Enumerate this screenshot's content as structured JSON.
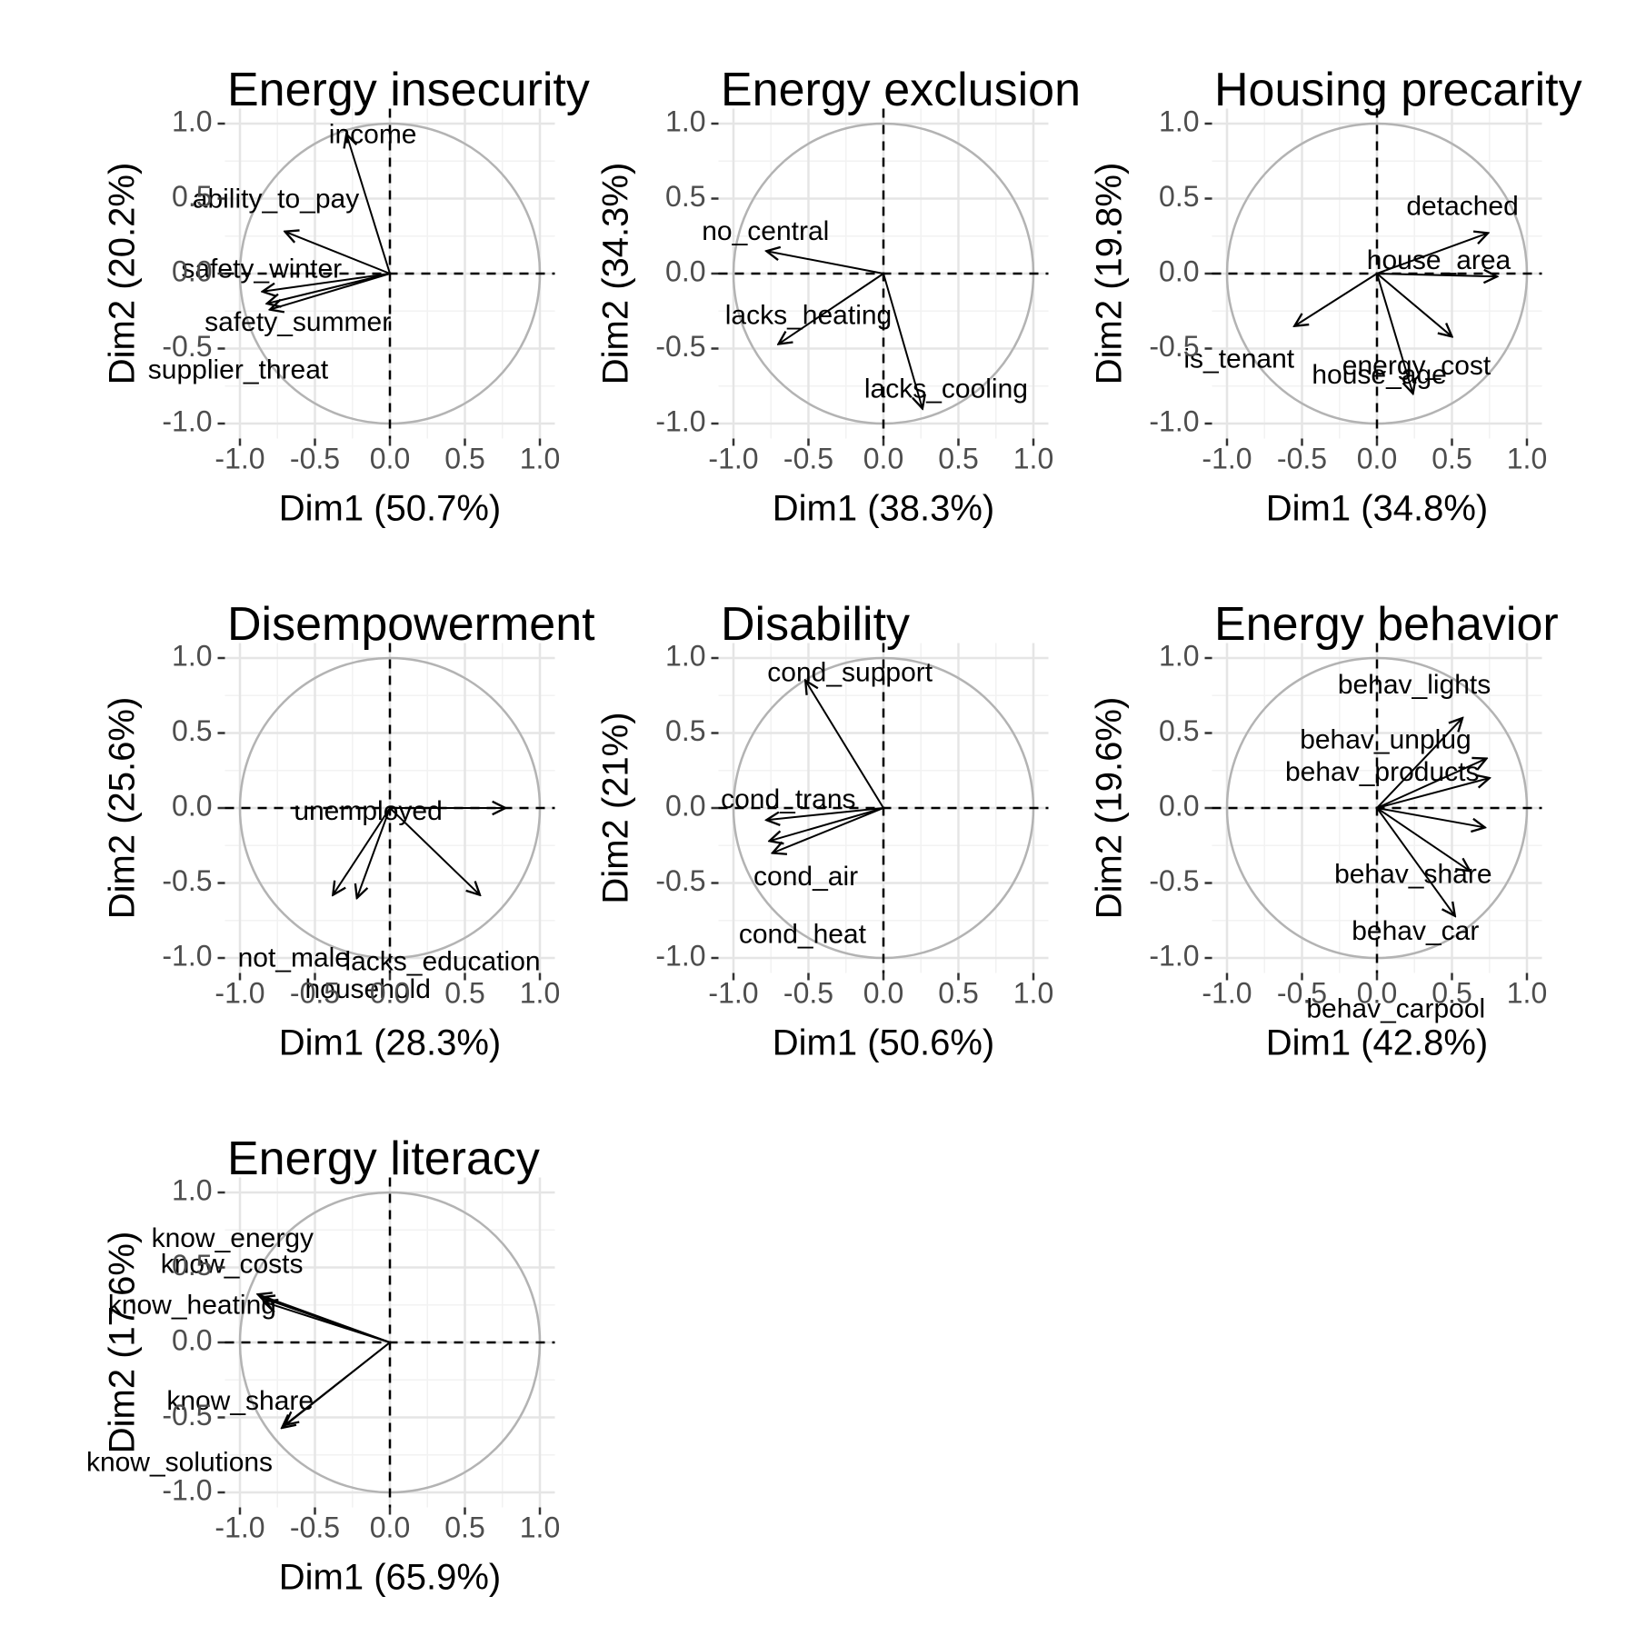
{
  "chart_data": [
    {
      "type": "scatter",
      "title": "Energy insecurity",
      "xlabel": "Dim1 (50.7%)",
      "ylabel": "Dim2 (20.2%)",
      "xlim": [
        -1.0,
        1.0
      ],
      "ylim": [
        -1.0,
        1.0
      ],
      "ticks": [
        "-1.0",
        "-0.5",
        "0.0",
        "0.5",
        "1.0"
      ],
      "tick_values": [
        -1.0,
        -0.5,
        0.0,
        0.5,
        1.0
      ],
      "grid": true,
      "variables": [
        {
          "name": "income",
          "x": -0.29,
          "y": 0.93
        },
        {
          "name": "ability_to_pay",
          "x": -0.7,
          "y": 0.28
        },
        {
          "name": "safety_winter",
          "x": -0.85,
          "y": -0.12
        },
        {
          "name": "safety_summer",
          "x": -0.82,
          "y": -0.2
        },
        {
          "name": "supplier_threat",
          "x": -0.8,
          "y": -0.24
        }
      ]
    },
    {
      "type": "scatter",
      "title": "Energy exclusion",
      "xlabel": "Dim1 (38.3%)",
      "ylabel": "Dim2 (34.3%)",
      "xlim": [
        -1.0,
        1.0
      ],
      "ylim": [
        -1.0,
        1.0
      ],
      "ticks": [
        "-1.0",
        "-0.5",
        "0.0",
        "0.5",
        "1.0"
      ],
      "tick_values": [
        -1.0,
        -0.5,
        0.0,
        0.5,
        1.0
      ],
      "grid": true,
      "variables": [
        {
          "name": "no_central",
          "x": -0.78,
          "y": 0.15
        },
        {
          "name": "lacks_heating",
          "x": -0.7,
          "y": -0.47
        },
        {
          "name": "lacks_cooling",
          "x": 0.26,
          "y": -0.9
        }
      ]
    },
    {
      "type": "scatter",
      "title": "Housing precarity",
      "xlabel": "Dim1 (34.8%)",
      "ylabel": "Dim2 (19.8%)",
      "xlim": [
        -1.0,
        1.0
      ],
      "ylim": [
        -1.0,
        1.0
      ],
      "ticks": [
        "-1.0",
        "-0.5",
        "0.0",
        "0.5",
        "1.0"
      ],
      "tick_values": [
        -1.0,
        -0.5,
        0.0,
        0.5,
        1.0
      ],
      "grid": true,
      "variables": [
        {
          "name": "detached",
          "x": 0.74,
          "y": 0.27
        },
        {
          "name": "house_area",
          "x": 0.8,
          "y": -0.02
        },
        {
          "name": "is_tenant",
          "x": -0.55,
          "y": -0.35
        },
        {
          "name": "energy_cost",
          "x": 0.5,
          "y": -0.42
        },
        {
          "name": "house_age",
          "x": 0.24,
          "y": -0.8
        }
      ]
    },
    {
      "type": "scatter",
      "title": "Disempowerment",
      "xlabel": "Dim1 (28.3%)",
      "ylabel": "Dim2 (25.6%)",
      "xlim": [
        -1.0,
        1.0
      ],
      "ylim": [
        -1.0,
        1.0
      ],
      "ticks": [
        "-1.0",
        "-0.5",
        "0.0",
        "0.5",
        "1.0"
      ],
      "tick_values": [
        -1.0,
        -0.5,
        0.0,
        0.5,
        1.0
      ],
      "grid": true,
      "variables": [
        {
          "name": "unemployed",
          "x": 0.77,
          "y": 0.0
        },
        {
          "name": "not_male",
          "x": -0.38,
          "y": -0.58
        },
        {
          "name": "lacks_education",
          "x": 0.6,
          "y": -0.58
        },
        {
          "name": "household",
          "x": -0.22,
          "y": -0.6
        }
      ]
    },
    {
      "type": "scatter",
      "title": "Disability",
      "xlabel": "Dim1 (50.6%)",
      "ylabel": "Dim2 (21%)",
      "xlim": [
        -1.0,
        1.0
      ],
      "ylim": [
        -1.0,
        1.0
      ],
      "ticks": [
        "-1.0",
        "-0.5",
        "0.0",
        "0.5",
        "1.0"
      ],
      "tick_values": [
        -1.0,
        -0.5,
        0.0,
        0.5,
        1.0
      ],
      "grid": true,
      "variables": [
        {
          "name": "cond_support",
          "x": -0.52,
          "y": 0.85
        },
        {
          "name": "cond_trans",
          "x": -0.78,
          "y": -0.08
        },
        {
          "name": "cond_air",
          "x": -0.76,
          "y": -0.22
        },
        {
          "name": "cond_heat",
          "x": -0.74,
          "y": -0.3
        }
      ]
    },
    {
      "type": "scatter",
      "title": "Energy behavior",
      "xlabel": "Dim1 (42.8%)",
      "ylabel": "Dim2 (19.6%)",
      "xlim": [
        -1.0,
        1.0
      ],
      "ylim": [
        -1.0,
        1.0
      ],
      "ticks": [
        "-1.0",
        "-0.5",
        "0.0",
        "0.5",
        "1.0"
      ],
      "tick_values": [
        -1.0,
        -0.5,
        0.0,
        0.5,
        1.0
      ],
      "grid": true,
      "variables": [
        {
          "name": "behav_lights",
          "x": 0.57,
          "y": 0.6
        },
        {
          "name": "behav_unplug",
          "x": 0.73,
          "y": 0.33
        },
        {
          "name": "behav_products",
          "x": 0.75,
          "y": 0.2
        },
        {
          "name": "behav_share",
          "x": 0.72,
          "y": -0.13
        },
        {
          "name": "behav_car",
          "x": 0.62,
          "y": -0.42
        },
        {
          "name": "behav_carpool",
          "x": 0.52,
          "y": -0.72
        }
      ]
    },
    {
      "type": "scatter",
      "title": "Energy literacy",
      "xlabel": "Dim1 (65.9%)",
      "ylabel": "Dim2 (17.6%)",
      "xlim": [
        -1.0,
        1.0
      ],
      "ylim": [
        -1.0,
        1.0
      ],
      "ticks": [
        "-1.0",
        "-0.5",
        "0.0",
        "0.5",
        "1.0"
      ],
      "tick_values": [
        -1.0,
        -0.5,
        0.0,
        0.5,
        1.0
      ],
      "grid": true,
      "variables": [
        {
          "name": "know_energy",
          "x": -0.88,
          "y": 0.32
        },
        {
          "name": "know_costs",
          "x": -0.86,
          "y": 0.3
        },
        {
          "name": "know_heating",
          "x": -0.84,
          "y": 0.27
        },
        {
          "name": "know_share",
          "x": -0.72,
          "y": -0.57
        },
        {
          "name": "know_solutions",
          "x": -0.7,
          "y": -0.55
        }
      ]
    }
  ]
}
